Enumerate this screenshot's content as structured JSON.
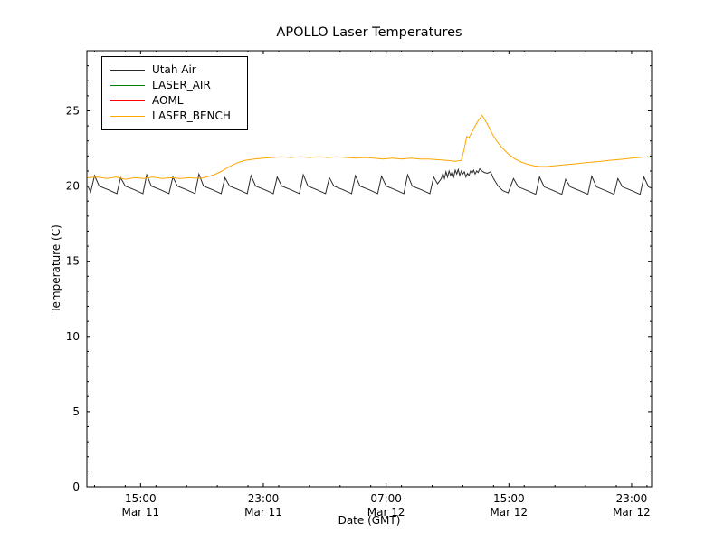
{
  "chart_data": {
    "type": "line",
    "title": "APOLLO Laser Temperatures",
    "xlabel": "Date (GMT)",
    "ylabel": "Temperature (C)",
    "x_unit": "hours since Mar 11 00:00 GMT",
    "xlim": [
      11.5,
      48.3
    ],
    "ylim": [
      0,
      29
    ],
    "grid": false,
    "legend_position": "upper left",
    "y_ticks": [
      0,
      5,
      10,
      15,
      20,
      25
    ],
    "x_minor_step": 2,
    "y_minor_step": 1,
    "x_ticks": [
      {
        "value": 15,
        "time": "15:00",
        "date": "Mar 11"
      },
      {
        "value": 23,
        "time": "23:00",
        "date": "Mar 11"
      },
      {
        "value": 31,
        "time": "07:00",
        "date": "Mar 12"
      },
      {
        "value": 39,
        "time": "15:00",
        "date": "Mar 12"
      },
      {
        "value": 47,
        "time": "23:00",
        "date": "Mar 12"
      }
    ],
    "series": [
      {
        "name": "Utah Air",
        "color": "#2b2b2b",
        "points": [
          [
            11.5,
            20.05
          ],
          [
            11.6,
            19.9
          ],
          [
            11.75,
            19.6
          ],
          [
            12.0,
            20.7
          ],
          [
            12.3,
            20.0
          ],
          [
            12.9,
            19.75
          ],
          [
            13.45,
            19.5
          ],
          [
            13.7,
            20.55
          ],
          [
            14.0,
            20.0
          ],
          [
            14.6,
            19.75
          ],
          [
            15.15,
            19.5
          ],
          [
            15.4,
            20.75
          ],
          [
            15.7,
            20.0
          ],
          [
            16.3,
            19.75
          ],
          [
            16.85,
            19.5
          ],
          [
            17.1,
            20.6
          ],
          [
            17.4,
            20.0
          ],
          [
            18.0,
            19.75
          ],
          [
            18.55,
            19.5
          ],
          [
            18.8,
            20.8
          ],
          [
            19.1,
            20.0
          ],
          [
            19.7,
            19.75
          ],
          [
            20.25,
            19.5
          ],
          [
            20.5,
            20.55
          ],
          [
            20.8,
            20.0
          ],
          [
            21.4,
            19.75
          ],
          [
            21.95,
            19.5
          ],
          [
            22.2,
            20.7
          ],
          [
            22.5,
            20.0
          ],
          [
            23.1,
            19.75
          ],
          [
            23.65,
            19.5
          ],
          [
            23.9,
            20.6
          ],
          [
            24.2,
            20.0
          ],
          [
            24.8,
            19.75
          ],
          [
            25.35,
            19.5
          ],
          [
            25.6,
            20.75
          ],
          [
            25.9,
            20.0
          ],
          [
            26.5,
            19.75
          ],
          [
            27.05,
            19.5
          ],
          [
            27.3,
            20.55
          ],
          [
            27.6,
            20.0
          ],
          [
            28.2,
            19.75
          ],
          [
            28.75,
            19.5
          ],
          [
            29.0,
            20.7
          ],
          [
            29.3,
            20.0
          ],
          [
            29.9,
            19.75
          ],
          [
            30.45,
            19.5
          ],
          [
            30.7,
            20.65
          ],
          [
            31.0,
            20.0
          ],
          [
            31.6,
            19.75
          ],
          [
            32.15,
            19.5
          ],
          [
            32.4,
            20.75
          ],
          [
            32.7,
            20.0
          ],
          [
            33.3,
            19.75
          ],
          [
            33.85,
            19.5
          ],
          [
            34.1,
            20.6
          ],
          [
            34.35,
            20.15
          ],
          [
            34.6,
            20.5
          ],
          [
            34.7,
            20.85
          ],
          [
            34.8,
            20.5
          ],
          [
            34.9,
            20.95
          ],
          [
            35.0,
            20.6
          ],
          [
            35.1,
            21.0
          ],
          [
            35.2,
            20.7
          ],
          [
            35.3,
            20.95
          ],
          [
            35.4,
            20.6
          ],
          [
            35.5,
            21.05
          ],
          [
            35.6,
            20.8
          ],
          [
            35.7,
            21.1
          ],
          [
            35.8,
            20.7
          ],
          [
            35.9,
            21.0
          ],
          [
            36.0,
            20.8
          ],
          [
            36.1,
            20.95
          ],
          [
            36.2,
            20.6
          ],
          [
            36.3,
            20.85
          ],
          [
            36.4,
            20.7
          ],
          [
            36.5,
            21.0
          ],
          [
            36.6,
            20.85
          ],
          [
            36.7,
            21.05
          ],
          [
            36.8,
            20.8
          ],
          [
            36.9,
            21.0
          ],
          [
            37.0,
            20.9
          ],
          [
            37.1,
            21.15
          ],
          [
            37.25,
            21.0
          ],
          [
            37.4,
            20.9
          ],
          [
            37.6,
            20.85
          ],
          [
            37.8,
            20.95
          ],
          [
            38.0,
            20.5
          ],
          [
            38.3,
            20.0
          ],
          [
            38.6,
            19.7
          ],
          [
            38.95,
            19.55
          ],
          [
            39.3,
            20.5
          ],
          [
            39.6,
            19.95
          ],
          [
            40.2,
            19.7
          ],
          [
            40.75,
            19.45
          ],
          [
            41.0,
            20.6
          ],
          [
            41.3,
            19.95
          ],
          [
            41.9,
            19.7
          ],
          [
            42.45,
            19.45
          ],
          [
            42.7,
            20.45
          ],
          [
            43.0,
            19.95
          ],
          [
            43.6,
            19.7
          ],
          [
            44.15,
            19.45
          ],
          [
            44.4,
            20.65
          ],
          [
            44.7,
            19.95
          ],
          [
            45.3,
            19.7
          ],
          [
            45.85,
            19.45
          ],
          [
            46.1,
            20.5
          ],
          [
            46.4,
            19.95
          ],
          [
            47.0,
            19.7
          ],
          [
            47.55,
            19.45
          ],
          [
            47.8,
            20.6
          ],
          [
            48.1,
            19.95
          ],
          [
            48.3,
            19.85
          ]
        ]
      },
      {
        "name": "LASER_AIR",
        "color": "#008000",
        "points": []
      },
      {
        "name": "AOML",
        "color": "#ff0000",
        "points": []
      },
      {
        "name": "LASER_BENCH",
        "color": "#ffa500",
        "points": [
          [
            11.5,
            20.55
          ],
          [
            12.2,
            20.6
          ],
          [
            12.8,
            20.5
          ],
          [
            13.4,
            20.6
          ],
          [
            14.0,
            20.45
          ],
          [
            14.6,
            20.55
          ],
          [
            15.2,
            20.5
          ],
          [
            15.8,
            20.6
          ],
          [
            16.4,
            20.5
          ],
          [
            17.0,
            20.55
          ],
          [
            17.6,
            20.5
          ],
          [
            18.2,
            20.55
          ],
          [
            18.8,
            20.5
          ],
          [
            19.3,
            20.6
          ],
          [
            19.8,
            20.75
          ],
          [
            20.3,
            21.0
          ],
          [
            20.8,
            21.3
          ],
          [
            21.3,
            21.55
          ],
          [
            21.8,
            21.7
          ],
          [
            22.4,
            21.8
          ],
          [
            23.0,
            21.85
          ],
          [
            23.6,
            21.9
          ],
          [
            24.2,
            21.95
          ],
          [
            24.8,
            21.9
          ],
          [
            25.4,
            21.95
          ],
          [
            26.0,
            21.9
          ],
          [
            26.6,
            21.95
          ],
          [
            27.2,
            21.9
          ],
          [
            27.8,
            21.95
          ],
          [
            28.4,
            21.9
          ],
          [
            29.0,
            21.85
          ],
          [
            29.6,
            21.9
          ],
          [
            30.2,
            21.85
          ],
          [
            30.8,
            21.8
          ],
          [
            31.4,
            21.85
          ],
          [
            32.0,
            21.8
          ],
          [
            32.6,
            21.85
          ],
          [
            33.2,
            21.8
          ],
          [
            33.8,
            21.8
          ],
          [
            34.4,
            21.75
          ],
          [
            35.0,
            21.7
          ],
          [
            35.5,
            21.65
          ],
          [
            35.9,
            21.7
          ],
          [
            36.1,
            22.5
          ],
          [
            36.25,
            23.3
          ],
          [
            36.4,
            23.2
          ],
          [
            36.6,
            23.6
          ],
          [
            36.8,
            24.0
          ],
          [
            37.0,
            24.35
          ],
          [
            37.15,
            24.55
          ],
          [
            37.25,
            24.7
          ],
          [
            37.35,
            24.55
          ],
          [
            37.6,
            24.1
          ],
          [
            37.9,
            23.5
          ],
          [
            38.2,
            23.0
          ],
          [
            38.6,
            22.5
          ],
          [
            39.0,
            22.1
          ],
          [
            39.4,
            21.8
          ],
          [
            39.8,
            21.6
          ],
          [
            40.2,
            21.45
          ],
          [
            40.6,
            21.35
          ],
          [
            41.0,
            21.3
          ],
          [
            41.5,
            21.3
          ],
          [
            42.0,
            21.35
          ],
          [
            42.5,
            21.4
          ],
          [
            43.0,
            21.45
          ],
          [
            43.5,
            21.5
          ],
          [
            44.0,
            21.55
          ],
          [
            44.5,
            21.6
          ],
          [
            45.0,
            21.65
          ],
          [
            45.5,
            21.7
          ],
          [
            46.0,
            21.75
          ],
          [
            46.5,
            21.8
          ],
          [
            47.0,
            21.85
          ],
          [
            47.5,
            21.9
          ],
          [
            48.0,
            21.95
          ],
          [
            48.3,
            21.95
          ]
        ]
      }
    ]
  }
}
